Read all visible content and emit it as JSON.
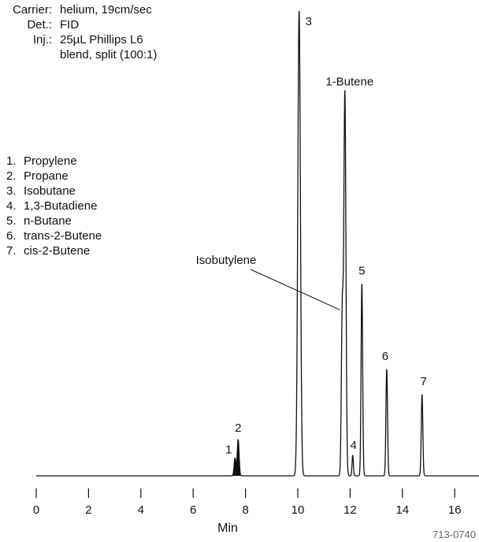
{
  "conditions": [
    {
      "label": "Carrier:",
      "lines": [
        "helium, 19cm/sec"
      ]
    },
    {
      "label": "Det.:",
      "lines": [
        "FID"
      ]
    },
    {
      "label": "Inj.:",
      "lines": [
        "25µL Phillips L6",
        "blend, split (100:1)"
      ]
    }
  ],
  "peak_list": [
    {
      "num": "1.",
      "name": "Propylene"
    },
    {
      "num": "2.",
      "name": "Propane"
    },
    {
      "num": "3.",
      "name": "Isobutane"
    },
    {
      "num": "4.",
      "name": "1,3-Butadiene"
    },
    {
      "num": "5.",
      "name": "n-Butane"
    },
    {
      "num": "6.",
      "name": "trans-2-Butene"
    },
    {
      "num": "7.",
      "name": "cis-2-Butene"
    }
  ],
  "figure_code": "713-0740",
  "chart_data": {
    "type": "line",
    "xlabel": "Min",
    "ylabel": "",
    "xlim": [
      0,
      17.9
    ],
    "ylim": [
      0,
      100
    ],
    "x_ticks": [
      0,
      2,
      4,
      6,
      8,
      10,
      12,
      14,
      16
    ],
    "grid": false,
    "baseline": 0,
    "peaks": [
      {
        "label": "1",
        "rt": 7.6,
        "height": 3.8,
        "sigma": 0.035,
        "filled": true
      },
      {
        "label": "2",
        "rt": 7.72,
        "height": 7.8,
        "sigma": 0.035,
        "filled": true
      },
      {
        "label": "3",
        "rt": 10.05,
        "height": 100,
        "sigma": 0.05,
        "filled": false
      },
      {
        "label": "Isobutylene",
        "rt": 11.7,
        "height": 34.7,
        "sigma": 0.035,
        "filled": false
      },
      {
        "label": "1-Butene",
        "rt": 11.8,
        "height": 82.3,
        "sigma": 0.04,
        "filled": false
      },
      {
        "label": "4",
        "rt": 12.1,
        "height": 4.4,
        "sigma": 0.025,
        "filled": false
      },
      {
        "label": "5",
        "rt": 12.45,
        "height": 41.3,
        "sigma": 0.03,
        "filled": false
      },
      {
        "label": "6",
        "rt": 13.4,
        "height": 22.9,
        "sigma": 0.03,
        "filled": false
      },
      {
        "label": "7",
        "rt": 14.75,
        "height": 17.5,
        "sigma": 0.03,
        "filled": false
      }
    ]
  }
}
